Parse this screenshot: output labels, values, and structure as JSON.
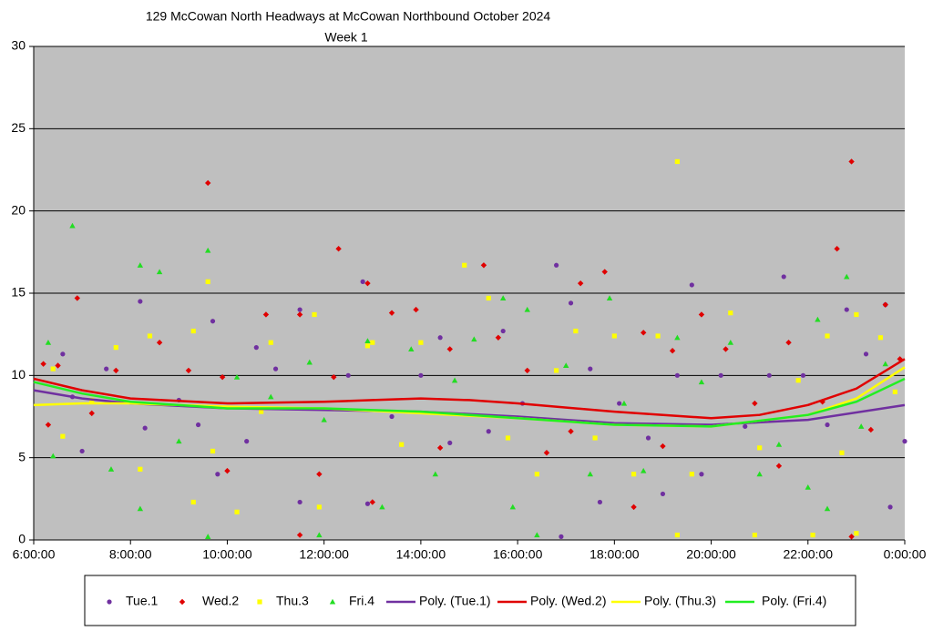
{
  "chart_data": {
    "type": "scatter",
    "title": "129 McCowan North Headways at McCowan Northbound October 2024",
    "subtitle": "Week 1",
    "xlim": [
      6,
      24
    ],
    "xticks": [
      {
        "value": 6,
        "label": "6:00:00"
      },
      {
        "value": 8,
        "label": "8:00:00"
      },
      {
        "value": 10,
        "label": "10:00:00"
      },
      {
        "value": 12,
        "label": "12:00:00"
      },
      {
        "value": 14,
        "label": "14:00:00"
      },
      {
        "value": 16,
        "label": "16:00:00"
      },
      {
        "value": 18,
        "label": "18:00:00"
      },
      {
        "value": 20,
        "label": "20:00:00"
      },
      {
        "value": 22,
        "label": "22:00:00"
      },
      {
        "value": 24,
        "label": "0:00:00"
      }
    ],
    "ylim": [
      0,
      30
    ],
    "yticks": [
      0,
      5,
      10,
      15,
      20,
      25,
      30
    ],
    "grid": true,
    "legend": "bottom",
    "series": [
      {
        "name": "Tue.1",
        "color": "#7030a0",
        "marker": "circle",
        "x": [
          6.6,
          6.8,
          7.0,
          7.5,
          8.2,
          8.3,
          9.0,
          9.4,
          9.7,
          9.8,
          10.4,
          10.6,
          11.0,
          11.5,
          11.5,
          12.5,
          12.8,
          12.9,
          13.4,
          14.0,
          14.4,
          14.6,
          15.4,
          15.7,
          16.1,
          16.8,
          16.9,
          17.1,
          17.5,
          17.7,
          18.1,
          18.7,
          19.0,
          19.3,
          19.6,
          19.8,
          20.2,
          20.7,
          21.2,
          21.5,
          21.9,
          22.4,
          22.8,
          23.2,
          23.6,
          23.7,
          24.0
        ],
        "values": [
          11.3,
          8.7,
          5.4,
          10.4,
          14.5,
          6.8,
          8.5,
          7.0,
          13.3,
          4.0,
          6.0,
          11.7,
          10.4,
          14.0,
          2.3,
          10.0,
          15.7,
          2.2,
          7.5,
          10.0,
          12.3,
          5.9,
          6.6,
          12.7,
          8.3,
          16.7,
          0.2,
          14.4,
          10.4,
          2.3,
          8.3,
          6.2,
          2.8,
          10.0,
          15.5,
          4.0,
          10.0,
          6.9,
          10.0,
          16.0,
          10.0,
          7.0,
          14.0,
          11.3,
          14.3,
          2.0,
          6.0
        ]
      },
      {
        "name": "Wed.2",
        "color": "#e00000",
        "marker": "diamond",
        "x": [
          6.2,
          6.3,
          6.5,
          6.9,
          7.2,
          7.7,
          8.6,
          9.2,
          9.6,
          9.9,
          10.0,
          10.8,
          11.5,
          11.5,
          11.9,
          12.2,
          12.3,
          12.9,
          13.0,
          13.4,
          13.9,
          14.4,
          14.6,
          15.3,
          15.6,
          16.2,
          16.6,
          17.1,
          17.3,
          17.8,
          18.4,
          18.6,
          19.0,
          19.2,
          19.8,
          20.3,
          20.9,
          21.4,
          21.6,
          22.3,
          22.6,
          22.9,
          22.9,
          23.3,
          23.6,
          23.9
        ],
        "values": [
          10.7,
          7.0,
          10.6,
          14.7,
          7.7,
          10.3,
          12.0,
          10.3,
          21.7,
          9.9,
          4.2,
          13.7,
          13.7,
          0.3,
          4.0,
          9.9,
          17.7,
          15.6,
          2.3,
          13.8,
          14.0,
          5.6,
          11.6,
          16.7,
          12.3,
          10.3,
          5.3,
          6.6,
          15.6,
          16.3,
          2.0,
          12.6,
          5.7,
          11.5,
          13.7,
          11.6,
          8.3,
          4.5,
          12.0,
          8.4,
          17.7,
          23.0,
          0.2,
          6.7,
          14.3,
          11.0
        ]
      },
      {
        "name": "Thu.3",
        "color": "#ffff00",
        "marker": "square",
        "x": [
          6.4,
          6.6,
          7.2,
          7.7,
          8.2,
          8.4,
          9.3,
          9.3,
          9.6,
          9.7,
          10.2,
          10.7,
          10.9,
          11.8,
          11.9,
          12.9,
          13.0,
          13.6,
          14.0,
          14.9,
          15.4,
          15.8,
          16.4,
          16.8,
          17.2,
          17.6,
          18.0,
          18.4,
          18.9,
          19.3,
          19.3,
          19.6,
          20.4,
          20.9,
          21.0,
          21.8,
          22.1,
          22.4,
          22.7,
          23.0,
          23.0,
          23.5,
          23.8
        ],
        "values": [
          10.4,
          6.3,
          8.5,
          11.7,
          4.3,
          12.4,
          2.3,
          12.7,
          15.7,
          5.4,
          1.7,
          7.8,
          12.0,
          13.7,
          2.0,
          11.8,
          12.0,
          5.8,
          12.0,
          16.7,
          14.7,
          6.2,
          4.0,
          10.3,
          12.7,
          6.2,
          12.4,
          4.0,
          12.4,
          23.0,
          0.3,
          4.0,
          13.8,
          0.3,
          5.6,
          9.7,
          0.3,
          12.4,
          5.3,
          13.7,
          0.4,
          12.3,
          9.0
        ]
      },
      {
        "name": "Fri.4",
        "color": "#22dd22",
        "marker": "triangle",
        "x": [
          6.3,
          6.4,
          6.8,
          7.6,
          8.2,
          8.2,
          8.6,
          9.0,
          9.6,
          9.6,
          10.2,
          10.9,
          11.7,
          11.9,
          12.0,
          12.9,
          13.2,
          13.8,
          14.3,
          14.7,
          15.1,
          15.7,
          15.9,
          16.2,
          16.4,
          17.0,
          17.5,
          17.9,
          18.2,
          18.6,
          19.3,
          19.8,
          20.4,
          21.0,
          21.4,
          22.0,
          22.2,
          22.4,
          22.8,
          23.1,
          23.6
        ],
        "values": [
          12.0,
          5.1,
          19.1,
          4.3,
          16.7,
          1.9,
          16.3,
          6.0,
          17.6,
          0.2,
          9.9,
          8.7,
          10.8,
          0.3,
          7.3,
          12.1,
          2.0,
          11.6,
          4.0,
          9.7,
          12.2,
          14.7,
          2.0,
          14.0,
          0.3,
          10.6,
          4.0,
          14.7,
          8.3,
          4.2,
          12.3,
          9.6,
          12.0,
          4.0,
          5.8,
          3.2,
          13.4,
          1.9,
          16.0,
          6.9,
          10.7
        ]
      },
      {
        "name": "Poly. (Tue.1)",
        "color": "#7030a0",
        "mode": "line",
        "x": [
          6,
          7,
          8,
          10,
          12,
          14,
          16,
          18,
          20,
          22,
          24
        ],
        "values": [
          9.1,
          8.6,
          8.3,
          8.0,
          7.9,
          7.8,
          7.5,
          7.1,
          7.0,
          7.3,
          8.2
        ]
      },
      {
        "name": "Poly. (Wed.2)",
        "color": "#e00000",
        "mode": "line",
        "x": [
          6,
          7,
          8,
          10,
          12,
          13,
          14,
          15,
          16,
          18,
          20,
          21,
          22,
          23,
          24
        ],
        "values": [
          9.8,
          9.1,
          8.6,
          8.3,
          8.4,
          8.5,
          8.6,
          8.5,
          8.3,
          7.8,
          7.4,
          7.6,
          8.2,
          9.2,
          11.0
        ]
      },
      {
        "name": "Poly. (Thu.3)",
        "color": "#ffff00",
        "mode": "line",
        "x": [
          6,
          7,
          8,
          10,
          12,
          14,
          16,
          18,
          20,
          22,
          23,
          24
        ],
        "values": [
          8.2,
          8.3,
          8.3,
          8.1,
          8.0,
          7.7,
          7.4,
          7.0,
          6.9,
          7.6,
          8.6,
          10.5
        ]
      },
      {
        "name": "Poly. (Fri.4)",
        "color": "#22ee22",
        "mode": "line",
        "x": [
          6,
          7,
          8,
          10,
          12,
          14,
          16,
          18,
          20,
          22,
          23,
          24
        ],
        "values": [
          9.6,
          8.9,
          8.4,
          8.0,
          8.0,
          7.8,
          7.4,
          7.0,
          6.9,
          7.6,
          8.4,
          9.8
        ]
      }
    ]
  }
}
